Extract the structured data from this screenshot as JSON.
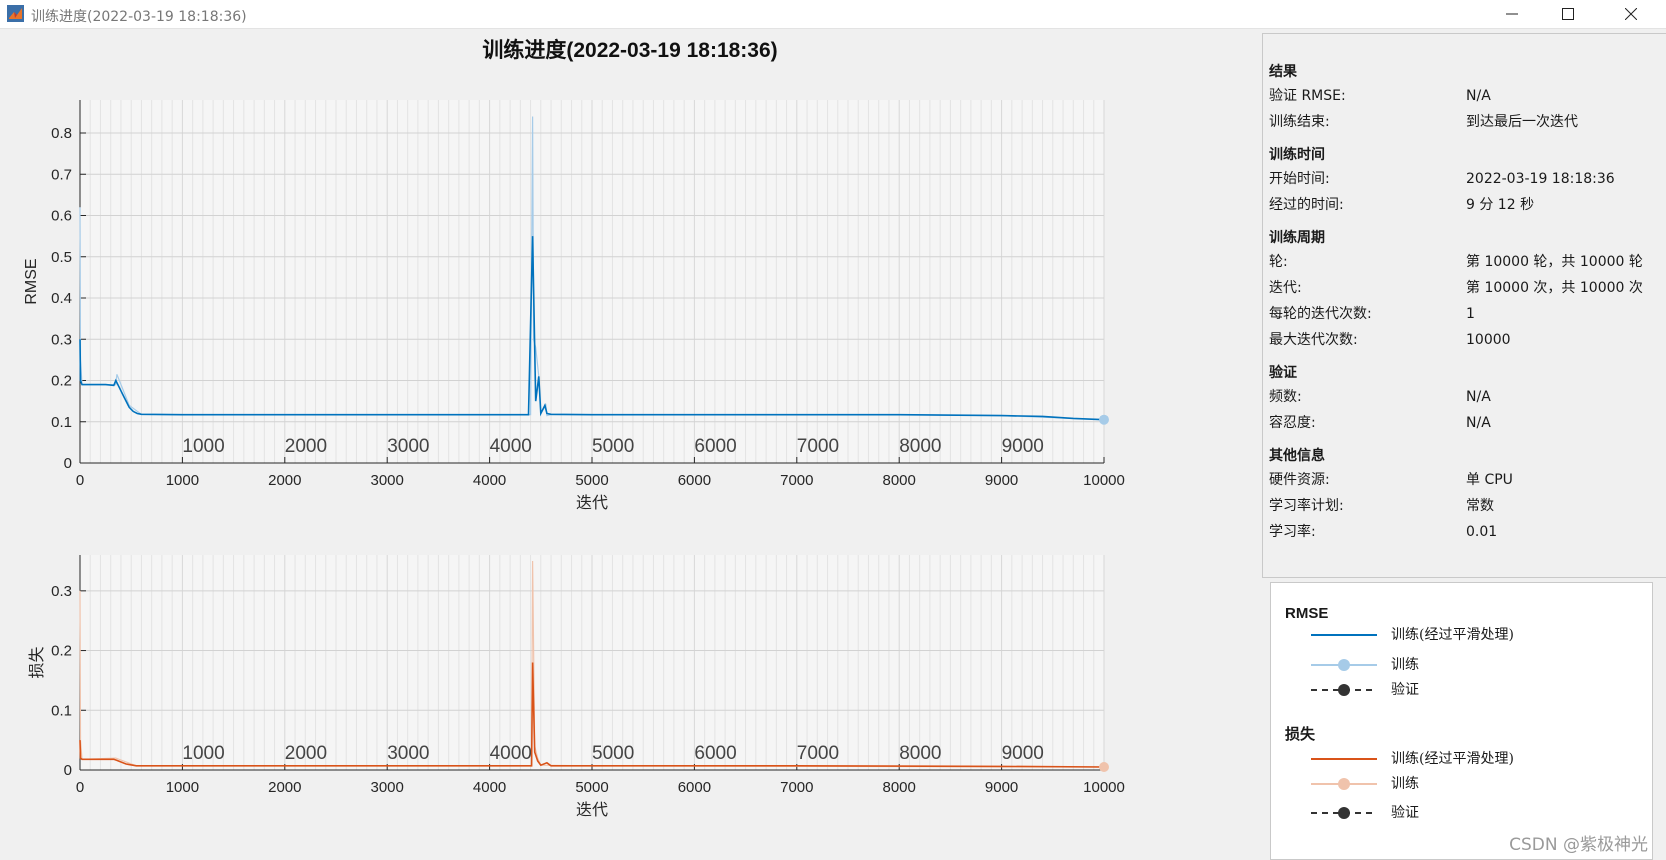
{
  "window": {
    "title": "训练进度(2022-03-19 18:18:36)",
    "icon": "matlab-icon",
    "controls": [
      "minimize-icon",
      "maximize-icon",
      "close-icon"
    ]
  },
  "main_title": "训练进度(2022-03-19 18:18:36)",
  "colors": {
    "rmse_smoothed": "#0072bd",
    "rmse_raw": "#a6cbe8",
    "loss_smoothed": "#d95319",
    "loss_raw": "#f0c3ac",
    "validation": "#333333"
  },
  "chart_data": [
    {
      "type": "line",
      "title": "",
      "xlabel": "迭代",
      "ylabel": "RMSE",
      "xlim": [
        0,
        10000
      ],
      "ylim": [
        0,
        0.88
      ],
      "x_ticks": [
        0,
        1000,
        2000,
        3000,
        4000,
        5000,
        6000,
        7000,
        8000,
        9000,
        10000
      ],
      "y_ticks": [
        0,
        0.1,
        0.2,
        0.3,
        0.4,
        0.5,
        0.6,
        0.7,
        0.8
      ],
      "y_tick_labels": [
        "0",
        "0.1",
        "0.2",
        "0.3",
        "0.4",
        "0.5",
        "0.6",
        "0.7",
        "0.8"
      ],
      "epoch_labels": [
        "1000",
        "2000",
        "3000",
        "4000",
        "5000",
        "6000",
        "7000",
        "8000",
        "9000"
      ],
      "grid": true,
      "series": [
        {
          "name": "训练(经过平滑处理)",
          "x": [
            0,
            5,
            20,
            100,
            250,
            330,
            350,
            380,
            430,
            480,
            520,
            560,
            600,
            1000,
            2000,
            3000,
            4000,
            4380,
            4420,
            4450,
            4480,
            4500,
            4540,
            4560,
            4600,
            5000,
            6000,
            7000,
            8000,
            9000,
            9400,
            9700,
            10000
          ],
          "y": [
            0.3,
            0.2,
            0.19,
            0.19,
            0.19,
            0.188,
            0.2,
            0.185,
            0.16,
            0.135,
            0.125,
            0.12,
            0.118,
            0.117,
            0.117,
            0.117,
            0.117,
            0.117,
            0.55,
            0.15,
            0.21,
            0.12,
            0.14,
            0.12,
            0.118,
            0.117,
            0.117,
            0.117,
            0.117,
            0.115,
            0.113,
            0.108,
            0.105
          ]
        },
        {
          "name": "训练",
          "x": [
            0,
            5,
            20,
            350,
            360,
            480,
            600,
            1000,
            2000,
            3000,
            4000,
            4400,
            4420,
            4430,
            4450,
            4480,
            4500,
            4550,
            4560,
            4600,
            5000,
            6000,
            7000,
            8000,
            9000,
            10000
          ],
          "y": [
            0.62,
            0.25,
            0.19,
            0.19,
            0.215,
            0.14,
            0.118,
            0.117,
            0.117,
            0.117,
            0.117,
            0.117,
            0.84,
            0.3,
            0.28,
            0.21,
            0.12,
            0.14,
            0.115,
            0.117,
            0.117,
            0.117,
            0.117,
            0.117,
            0.115,
            0.105
          ]
        }
      ]
    },
    {
      "type": "line",
      "title": "",
      "xlabel": "迭代",
      "ylabel": "损失",
      "xlim": [
        0,
        10000
      ],
      "ylim": [
        0,
        0.36
      ],
      "x_ticks": [
        0,
        1000,
        2000,
        3000,
        4000,
        5000,
        6000,
        7000,
        8000,
        9000,
        10000
      ],
      "y_ticks": [
        0,
        0.1,
        0.2,
        0.3
      ],
      "y_tick_labels": [
        "0",
        "0.1",
        "0.2",
        "0.3"
      ],
      "epoch_labels": [
        "1000",
        "2000",
        "3000",
        "4000",
        "5000",
        "6000",
        "7000",
        "8000",
        "9000"
      ],
      "grid": true,
      "series": [
        {
          "name": "训练(经过平滑处理)",
          "x": [
            0,
            5,
            20,
            330,
            360,
            450,
            550,
            1000,
            2000,
            3000,
            4000,
            4410,
            4420,
            4440,
            4470,
            4500,
            4560,
            4600,
            5000,
            7000,
            9000,
            10000
          ],
          "y": [
            0.05,
            0.02,
            0.018,
            0.018,
            0.016,
            0.01,
            0.007,
            0.007,
            0.007,
            0.007,
            0.007,
            0.007,
            0.18,
            0.03,
            0.015,
            0.008,
            0.012,
            0.007,
            0.007,
            0.007,
            0.006,
            0.005
          ]
        },
        {
          "name": "训练",
          "x": [
            0,
            5,
            20,
            350,
            550,
            1000,
            4000,
            4410,
            4420,
            4440,
            4470,
            4500,
            5000,
            10000
          ],
          "y": [
            0.3,
            0.05,
            0.018,
            0.02,
            0.007,
            0.007,
            0.007,
            0.007,
            0.35,
            0.04,
            0.02,
            0.008,
            0.007,
            0.005
          ]
        }
      ]
    }
  ],
  "info": {
    "sections": [
      {
        "title": "结果",
        "rows": [
          [
            "验证 RMSE:",
            "N/A"
          ],
          [
            "训练结束:",
            "到达最后一次迭代"
          ]
        ]
      },
      {
        "title": "训练时间",
        "rows": [
          [
            "开始时间:",
            "2022-03-19 18:18:36"
          ],
          [
            "经过的时间:",
            "9 分 12 秒"
          ]
        ]
      },
      {
        "title": "训练周期",
        "rows": [
          [
            "轮:",
            "第 10000 轮，共 10000 轮"
          ],
          [
            "迭代:",
            "第 10000 次，共 10000 次"
          ],
          [
            "每轮的迭代次数:",
            "1"
          ],
          [
            "最大迭代次数:",
            "10000"
          ]
        ]
      },
      {
        "title": "验证",
        "rows": [
          [
            "频数:",
            "N/A"
          ],
          [
            "容忍度:",
            "N/A"
          ]
        ]
      },
      {
        "title": "其他信息",
        "rows": [
          [
            "硬件资源:",
            "单 CPU"
          ],
          [
            "学习率计划:",
            "常数"
          ],
          [
            "学习率:",
            "0.01"
          ]
        ]
      }
    ]
  },
  "legend": {
    "rmse_title": "RMSE",
    "loss_title": "损失",
    "smoothed": "训练(经过平滑处理)",
    "train": "训练",
    "validation": "验证"
  },
  "watermark": "CSDN @紫极神光"
}
